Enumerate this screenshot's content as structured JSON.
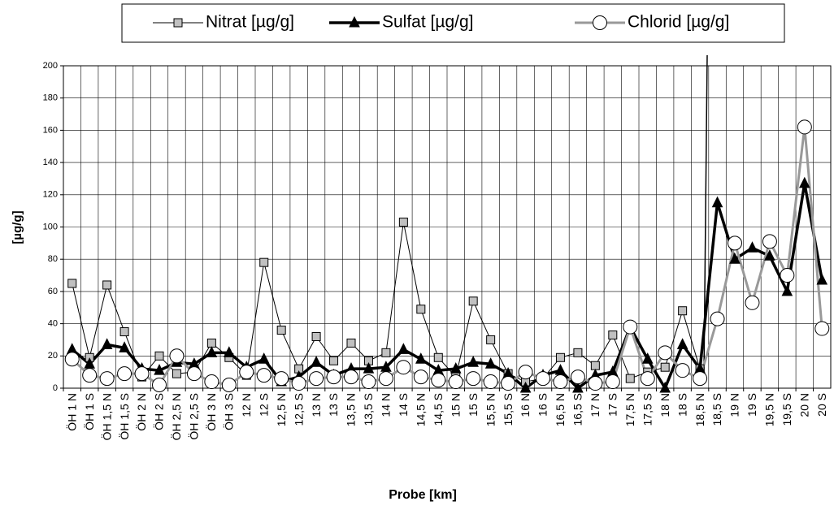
{
  "chart_data": {
    "type": "line",
    "x_label": "Probe [km]",
    "y_label": "[µg/g]",
    "categories": [
      "ÖH 1 N",
      "ÖH 1 S",
      "ÖH 1,5 N",
      "ÖH 1,5 S",
      "ÖH 2 N",
      "ÖH 2 S",
      "ÖH 2,5 N",
      "ÖH 2,5 S",
      "ÖH 3 N",
      "ÖH 3 S",
      "12 N",
      "12 S",
      "12,5 N",
      "12,5 S",
      "13 N",
      "13 S",
      "13,5 N",
      "13,5 S",
      "14 N",
      "14 S",
      "14,5 N",
      "14,5 S",
      "15 N",
      "15 S",
      "15,5 N",
      "15,5 S",
      "16 N",
      "16 S",
      "16,5 N",
      "16,5 S",
      "17 N",
      "17 S",
      "17,5 N",
      "17,5 S",
      "18 N",
      "18 S",
      "18,5 N",
      "18,5 S",
      "19 N",
      "19 S",
      "19,5 N",
      "19,5 S",
      "20 N",
      "20 S"
    ],
    "series": [
      {
        "name": "Nitrat [µg/g]",
        "color": "#000000",
        "marker_color": "#c0c0c0",
        "marker": "square",
        "line_width": 1,
        "values": [
          65,
          19,
          64,
          35,
          7,
          20,
          9,
          10,
          28,
          19,
          8,
          78,
          36,
          12,
          32,
          17,
          28,
          17,
          22,
          103,
          49,
          19,
          7,
          54,
          30,
          9,
          4,
          6,
          19,
          22,
          14,
          33,
          6,
          10,
          13,
          48,
          12,
          null,
          null,
          null,
          null,
          null,
          null,
          null
        ]
      },
      {
        "name": "Sulfat [µg/g]",
        "color": "#000000",
        "marker_color": "#000000",
        "marker": "triangle",
        "line_width": 3.5,
        "values": [
          24,
          15,
          27,
          25,
          12,
          11,
          16,
          15,
          22,
          22,
          13,
          18,
          4,
          7,
          16,
          8,
          12,
          12,
          13,
          24,
          18,
          11,
          12,
          16,
          15,
          9,
          0,
          8,
          11,
          0,
          8,
          10,
          38,
          18,
          0,
          27,
          12,
          115,
          80,
          87,
          82,
          60,
          127,
          67
        ]
      },
      {
        "name": "Chlorid [µg/g]",
        "color": "#999999",
        "marker_color": "#ffffff",
        "marker": "circle",
        "line_width": 3,
        "values": [
          18,
          8,
          6,
          9,
          9,
          2,
          20,
          9,
          4,
          2,
          10,
          8,
          6,
          3,
          6,
          7,
          7,
          4,
          6,
          13,
          7,
          5,
          4,
          6,
          4,
          3,
          10,
          6,
          4,
          7,
          3,
          4,
          38,
          6,
          22,
          11,
          6,
          43,
          90,
          53,
          91,
          70,
          162,
          37
        ]
      }
    ],
    "ylim": [
      0,
      200
    ],
    "yticks": [
      0,
      20,
      40,
      60,
      80,
      100,
      120,
      140,
      160,
      180,
      200
    ],
    "grid": true
  }
}
